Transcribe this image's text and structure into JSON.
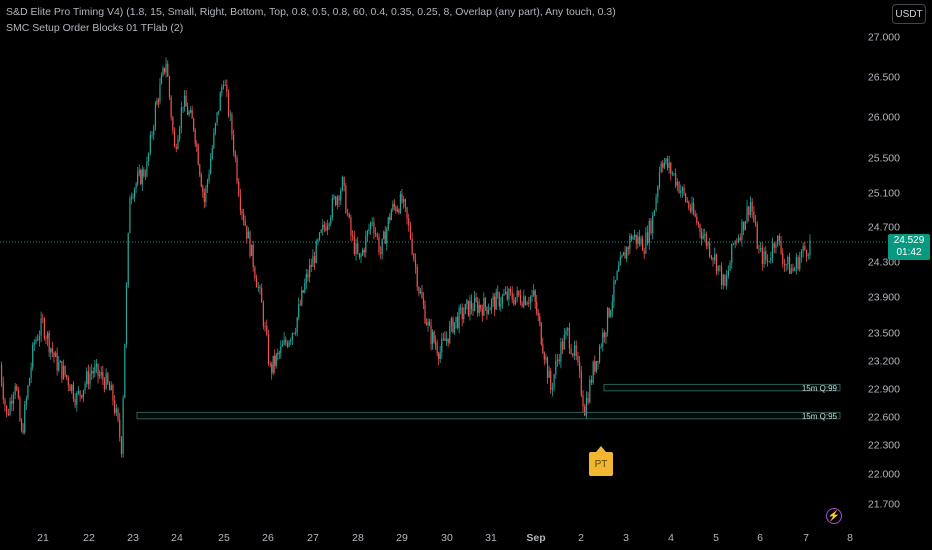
{
  "legend": {
    "line1": "S&D Elite Pro Timing V4) (1.8, 15, Small, Right, Bottom, Top, 0.8, 0.5, 0.8, 60, 0.4, 0.35, 0.25, 8, Overlap (any part), Any touch, 0.3)",
    "line2": "SMC Setup Order Blocks 01 TFlab (2)"
  },
  "currency_label": "USDT",
  "last_price": "24.529",
  "countdown": "01:42",
  "pt_label": "PT",
  "flash_icon": "lightning-icon",
  "colors": {
    "up": "#26a69a",
    "down": "#ef5350",
    "accent": "#089981",
    "marker": "#f2b630"
  },
  "chart_data": {
    "type": "candlestick",
    "y_ticks": [
      "27.000",
      "26.500",
      "26.000",
      "25.500",
      "25.100",
      "24.700",
      "24.300",
      "23.900",
      "23.500",
      "23.200",
      "22.900",
      "22.600",
      "22.300",
      "22.000",
      "21.700"
    ],
    "x_ticks": [
      "21",
      "22",
      "23",
      "24",
      "25",
      "26",
      "27",
      "28",
      "29",
      "30",
      "31",
      "Sep",
      "2",
      "3",
      "4",
      "5",
      "6",
      "7",
      "8"
    ],
    "ylim": [
      21.7,
      27.0
    ],
    "last_price": 24.529,
    "order_blocks": [
      {
        "label": "15m Q:99",
        "top": 22.95,
        "bottom": 22.88
      },
      {
        "label": "15m Q:95",
        "top": 22.65,
        "bottom": 22.58
      }
    ],
    "path": [
      [
        0.0,
        23.3
      ],
      [
        0.04,
        22.6
      ],
      [
        0.08,
        23.0
      ],
      [
        0.11,
        22.4
      ],
      [
        0.17,
        23.4
      ],
      [
        0.21,
        23.6
      ],
      [
        0.27,
        23.2
      ],
      [
        0.33,
        23.0
      ],
      [
        0.37,
        22.8
      ],
      [
        0.44,
        23.1
      ],
      [
        0.5,
        23.0
      ],
      [
        0.54,
        22.8
      ],
      [
        0.58,
        22.3
      ],
      [
        0.62,
        25.1
      ],
      [
        0.7,
        25.4
      ],
      [
        0.74,
        26.1
      ],
      [
        0.79,
        26.7
      ],
      [
        0.83,
        25.6
      ],
      [
        0.87,
        26.2
      ],
      [
        0.92,
        25.9
      ],
      [
        0.97,
        25.0
      ],
      [
        1.03,
        26.0
      ],
      [
        1.06,
        26.5
      ],
      [
        1.1,
        25.8
      ],
      [
        1.14,
        25.0
      ],
      [
        1.2,
        24.3
      ],
      [
        1.24,
        23.8
      ],
      [
        1.28,
        23.1
      ],
      [
        1.33,
        23.3
      ],
      [
        1.4,
        23.6
      ],
      [
        1.45,
        24.1
      ],
      [
        1.52,
        24.6
      ],
      [
        1.58,
        25.0
      ],
      [
        1.62,
        25.2
      ],
      [
        1.66,
        24.6
      ],
      [
        1.7,
        24.3
      ],
      [
        1.76,
        24.8
      ],
      [
        1.8,
        24.4
      ],
      [
        1.85,
        24.9
      ],
      [
        1.9,
        25.0
      ],
      [
        1.94,
        24.6
      ],
      [
        1.98,
        24.0
      ],
      [
        2.03,
        23.5
      ],
      [
        2.08,
        23.3
      ],
      [
        2.14,
        23.6
      ],
      [
        2.22,
        23.8
      ],
      [
        2.3,
        23.8
      ],
      [
        2.38,
        23.9
      ],
      [
        2.45,
        23.9
      ],
      [
        2.52,
        23.9
      ],
      [
        2.57,
        23.3
      ],
      [
        2.6,
        22.9
      ],
      [
        2.64,
        23.3
      ],
      [
        2.68,
        23.5
      ],
      [
        2.72,
        23.2
      ],
      [
        2.76,
        22.7
      ],
      [
        2.8,
        23.1
      ],
      [
        2.86,
        23.6
      ],
      [
        2.92,
        24.2
      ],
      [
        2.98,
        24.6
      ],
      [
        3.04,
        24.5
      ],
      [
        3.08,
        24.8
      ],
      [
        3.12,
        25.5
      ],
      [
        3.18,
        25.3
      ],
      [
        3.22,
        25.1
      ],
      [
        3.28,
        24.8
      ],
      [
        3.34,
        24.5
      ],
      [
        3.38,
        24.3
      ],
      [
        3.42,
        24.0
      ],
      [
        3.46,
        24.5
      ],
      [
        3.5,
        24.7
      ],
      [
        3.54,
        25.0
      ],
      [
        3.58,
        24.4
      ],
      [
        3.62,
        24.3
      ],
      [
        3.66,
        24.6
      ],
      [
        3.7,
        24.3
      ],
      [
        3.74,
        24.2
      ],
      [
        3.78,
        24.4
      ],
      [
        3.82,
        24.5
      ]
    ]
  }
}
